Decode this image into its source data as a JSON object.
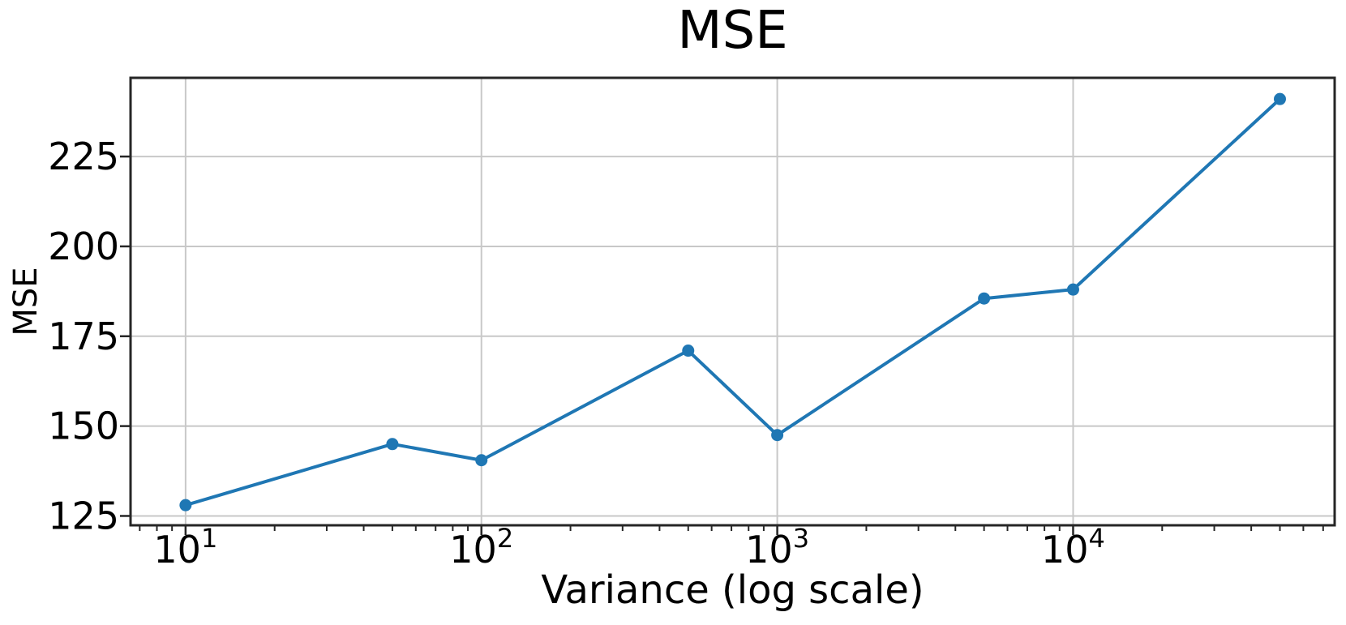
{
  "figure": {
    "background": "#ffffff"
  },
  "chart_data": {
    "type": "line",
    "title": "MSE",
    "xlabel": "Variance (log scale)",
    "ylabel": "MSE",
    "xscale": "log",
    "yscale": "linear",
    "x": [
      10,
      50,
      100,
      500,
      1000,
      5000,
      10000,
      50000
    ],
    "y": [
      128,
      145,
      140.5,
      171,
      147.5,
      185.5,
      188,
      241
    ],
    "xticks": [
      10,
      100,
      1000,
      10000
    ],
    "xtick_exponents": [
      1,
      2,
      3,
      4
    ],
    "xtick_base": "10",
    "yticks": [
      125,
      150,
      175,
      200,
      225
    ],
    "xlim_log": [
      0.814,
      4.884
    ],
    "ylim": [
      122.4,
      246.9
    ],
    "grid": true,
    "legend": null,
    "marker": "circle",
    "colors": {
      "line": "#1f77b4",
      "marker": "#1f77b4",
      "grid": "#c8c8c8",
      "spine": "#262626",
      "tick": "#262626",
      "text": "#000000"
    }
  }
}
